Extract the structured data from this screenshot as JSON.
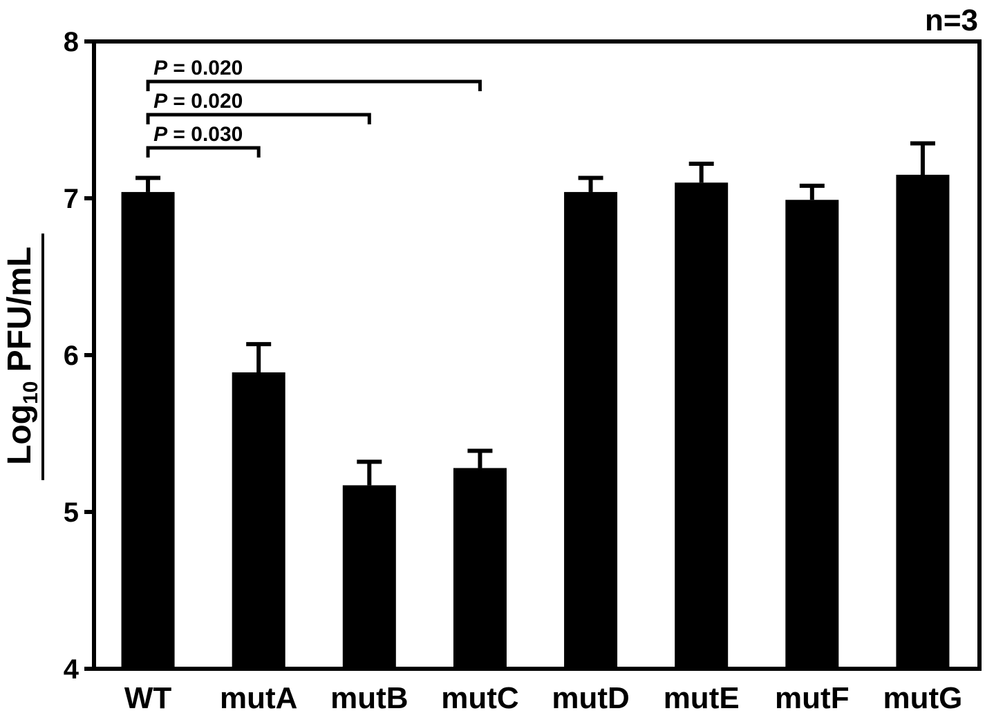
{
  "chart_data": {
    "type": "bar",
    "title": "",
    "annotation_n": "n=3",
    "ylabel": {
      "main": "Log",
      "subscript": "10",
      "rest": " PFU/mL"
    },
    "xlabel": "",
    "ylim": [
      4,
      8
    ],
    "yticks": [
      "4",
      "5",
      "6",
      "7",
      "8"
    ],
    "categories": [
      "WT",
      "mutA",
      "mutB",
      "mutC",
      "mutD",
      "mutE",
      "mutF",
      "mutG"
    ],
    "values": [
      7.04,
      5.89,
      5.17,
      5.28,
      7.04,
      7.1,
      6.99,
      7.15
    ],
    "errors": [
      0.09,
      0.18,
      0.15,
      0.11,
      0.09,
      0.12,
      0.09,
      0.2
    ],
    "bar_color": "#000000",
    "grid": false,
    "significance": [
      {
        "from": "WT",
        "to": "mutC",
        "p_symbol": "P",
        "p_text": " = 0.020"
      },
      {
        "from": "WT",
        "to": "mutB",
        "p_symbol": "P",
        "p_text": " = 0.020"
      },
      {
        "from": "WT",
        "to": "mutA",
        "p_symbol": "P",
        "p_text": " = 0.030"
      }
    ]
  }
}
